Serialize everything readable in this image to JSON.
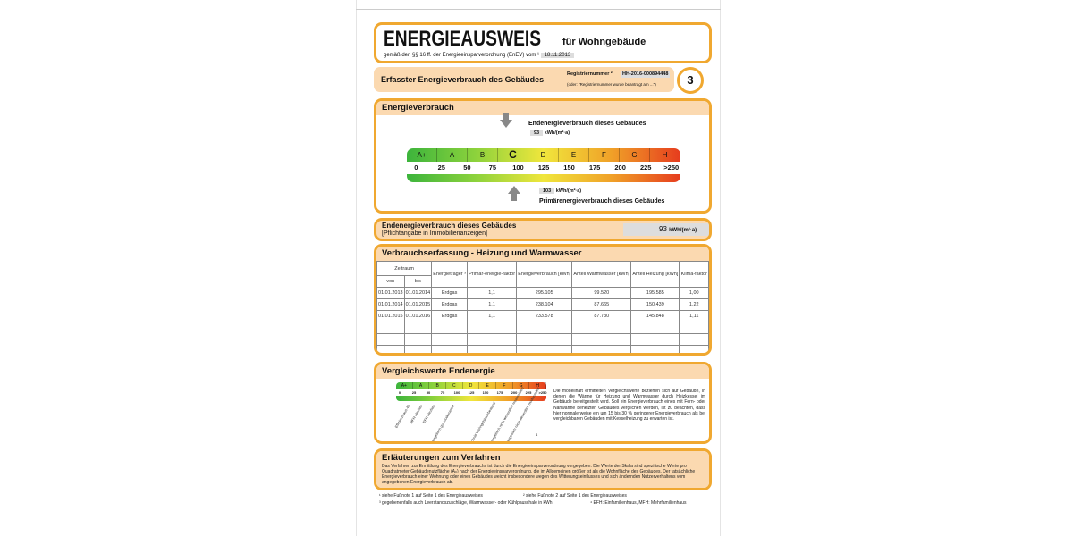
{
  "header": {
    "title": "ENERGIEAUSWEIS",
    "subtitle": "für Wohngebäude",
    "law": "gemäß den §§ 16 ff. der Energieeinsparverordnung (EnEV) vom ¹",
    "law_date": "18.11.2013"
  },
  "section_bar": {
    "title": "Erfasster Energieverbrauch des Gebäudes",
    "reg_label": "Registriernummer ²",
    "reg_value": "HH-2016-000894448",
    "reg_note": "(oder: \"Registriernummer wurde beantragt am ...\")",
    "page_number": "3"
  },
  "energieverbrauch": {
    "title": "Energieverbrauch",
    "end_label": "Endenergieverbrauch dieses Gebäudes",
    "end_value": "93",
    "end_unit": "kWh/(m²·a)",
    "primary_label": "Primärenergieverbrauch dieses Gebäudes",
    "primary_value": "103",
    "primary_unit": "kWh/(m²·a)",
    "classes": [
      "A+",
      "A",
      "B",
      "C",
      "D",
      "E",
      "F",
      "G",
      "H"
    ],
    "current_class": "C",
    "ticks": [
      "0",
      "25",
      "50",
      "75",
      "100",
      "125",
      "150",
      "175",
      "200",
      "225",
      ">250"
    ]
  },
  "pflicht": {
    "title": "Endenergieverbrauch dieses Gebäudes",
    "note": "[Pflichtangabe in Immobilienanzeigen]",
    "value": "93",
    "unit": "kWh/(m²·a)"
  },
  "table": {
    "title": "Verbrauchserfassung - Heizung und Warmwasser",
    "headers": {
      "zeitraum": "Zeitraum",
      "von": "von",
      "bis": "bis",
      "traeger": "Energieträger ³",
      "primaer": "Primär-energie-faktor",
      "verbrauch": "Energieverbrauch [kWh]",
      "warmwasser": "Anteil Warmwasser [kWh]",
      "heizung": "Anteil Heizung [kWh]",
      "klima": "Klima-faktor"
    },
    "rows": [
      [
        "01.01.2013",
        "01.01.2014",
        "Erdgas",
        "1,1",
        "295.105",
        "99.520",
        "195.585",
        "1,00"
      ],
      [
        "01.01.2014",
        "01.01.2015",
        "Erdgas",
        "1,1",
        "238.104",
        "87.665",
        "150.439",
        "1,22"
      ],
      [
        "01.01.2015",
        "01.01.2016",
        "Erdgas",
        "1,1",
        "233.578",
        "87.730",
        "145.848",
        "1,11"
      ],
      [
        "",
        "",
        "",
        "",
        "",
        "",
        "",
        ""
      ],
      [
        "",
        "",
        "",
        "",
        "",
        "",
        "",
        ""
      ],
      [
        "",
        "",
        "",
        "",
        "",
        "",
        "",
        ""
      ]
    ]
  },
  "vergleich": {
    "title": "Vergleichswerte Endenergie",
    "references": [
      "Effizienzhaus 40",
      "MFH Neubau",
      "EFH Neubau",
      "EFH energetisch gut modernisiert",
      "Durchschnitt Wohngebäudebestand",
      "MFH energetisch nicht wesentlich modernisiert",
      "EFH energetisch nicht wesentlich modernisiert"
    ],
    "footnote_mark": "4",
    "text": "Die modellhaft ermittelten Vergleichswerte beziehen sich auf Gebäude, in denen die Wärme für Heizung und Warmwasser durch Heizkessel im Gebäude bereitgestellt wird. Soll ein Energieverbrauch eines mit Fern- oder Nahwärme beheizten Gebäudes verglichen werden, ist zu beachten, dass hier normalerweise ein um 15 bis 30 % geringerer Energieverbrauch als bei vergleichbaren Gebäuden mit Kesselheizung zu erwarten ist."
  },
  "erlaeuterung": {
    "title": "Erläuterungen zum Verfahren",
    "text": "Das Verfahren zur Ermittlung des Energieverbrauchs ist durch die Energieeinsparverordnung vorgegeben. Die Werte der Skala sind spezifische Werte pro Quadratmeter Gebäudenutzfläche (Aₙ) nach der Energieeinsparverordnung, die im Allgemeinen größer ist als die Wohnfläche des Gebäudes. Der tatsächliche Energieverbrauch einer Wohnung oder eines Gebäudes weicht insbesondere wegen des Witterungseinflusses und sich ändernden Nutzerverhaltens vom angegebenen Energieverbrauch ab."
  },
  "footnotes": {
    "f1": "¹ siehe Fußnote 1 auf Seite 1 des Energieausweises",
    "f2": "² siehe Fußnote 2 auf Seite 1 des Energieausweises",
    "f3": "³ gegebenenfalls auch Leerstandszuschläge, Warmwasser- oder Kühlpauschale in kWh",
    "f4": "⁴ EFH: Einfamilienhaus, MFH: Mehrfamilienhaus"
  },
  "colors": {
    "accent": "#f0a830",
    "header_fill": "#fbd9b0"
  }
}
